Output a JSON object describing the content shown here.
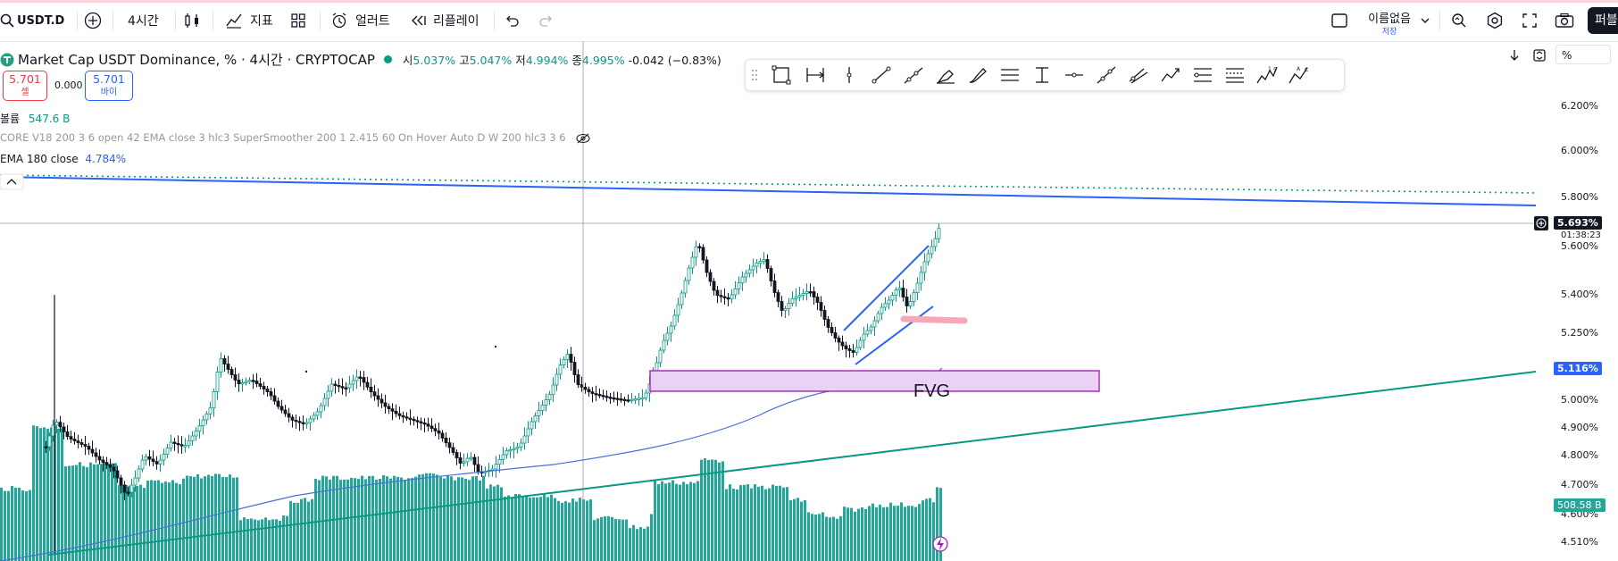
{
  "toolbar": {
    "symbol": "USDT.D",
    "interval": "4시간",
    "indicators_label": "지표",
    "alerts_label": "얼러트",
    "replay_label": "리플레이",
    "layout_name": "이름없음",
    "layout_sub": "저장",
    "publish_label": "퍼블"
  },
  "legend": {
    "title": "Market Cap USDT Dominance, % · 4시간 · CRYPTOCAP",
    "open_label": "시",
    "open": "5.037%",
    "high_label": "고",
    "high": "5.047%",
    "low_label": "저",
    "low": "4.994%",
    "close_label": "종",
    "close": "4.995%",
    "change": "-0.042 (−0.83%)",
    "sell_price": "5.701",
    "sell_label": "셀",
    "spread": "0.000",
    "buy_price": "5.701",
    "buy_label": "바이",
    "volume_label": "볼륨",
    "volume_value": "547.6 B",
    "core_indicator": "CORE V18 200 3 6 open 42 EMA close 3 hlc3 SuperSmoother 200 1 2.415 60 On Hover Auto D W 200 hlc3 3 6",
    "ema_label": "EMA 180 close",
    "ema_value": "4.784%"
  },
  "price_axis": {
    "percent_toggle": "%",
    "ticks": [
      "6.200%",
      "6.000%",
      "5.800%",
      "5.600%",
      "5.400%",
      "5.250%",
      "5.000%",
      "4.900%",
      "4.800%",
      "4.700%",
      "4.600%",
      "4.510%"
    ],
    "last_price_tag": "5.693%",
    "countdown": "01:38:23",
    "ema_tag": "5.116%",
    "volume_tag": "508.58 B"
  },
  "annotations": {
    "fvg_label": "FVG"
  },
  "colors": {
    "up": "#089981",
    "down": "#131722",
    "accent": "#2962ff",
    "sell_red": "#f23645",
    "volume": "#26a69a",
    "fvg_fill": "#ead1f5",
    "fvg_border": "#9c27b0"
  }
}
